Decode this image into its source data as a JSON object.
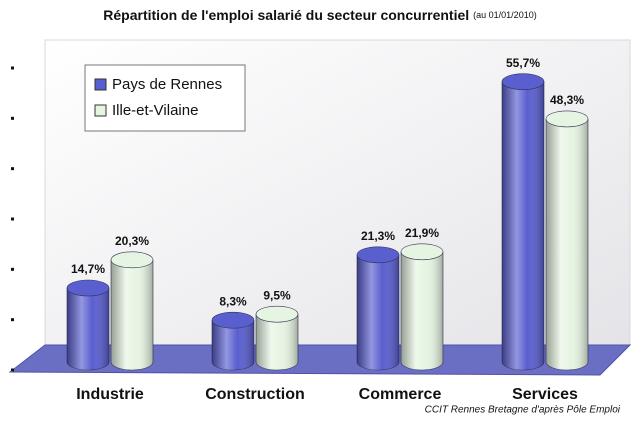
{
  "chart_data": {
    "type": "bar3d",
    "title": "Répartition de l'emploi salarié du secteur concurrentiel",
    "subtitle": "(au 01/01/2010)",
    "source": "CCIT Rennes Bretagne d'après Pôle Emploi",
    "categories": [
      "Industrie",
      "Construction",
      "Commerce",
      "Services"
    ],
    "series": [
      {
        "name": "Pays de Rennes",
        "color": "#5a5fcf",
        "values": [
          14.7,
          8.3,
          21.3,
          55.7
        ],
        "value_labels": [
          "14,7%",
          "8,3%",
          "21,3%",
          "55,7%"
        ]
      },
      {
        "name": "Ille-et-Vilaine",
        "color": "#e6f4e2",
        "values": [
          20.3,
          9.5,
          21.9,
          48.3
        ],
        "value_labels": [
          "20,3%",
          "9,5%",
          "21,9%",
          "48,3%"
        ]
      }
    ],
    "ylim": [
      0,
      60
    ],
    "yticks": [
      0,
      10,
      20,
      30,
      40,
      50,
      60
    ],
    "legend": "upper left"
  }
}
